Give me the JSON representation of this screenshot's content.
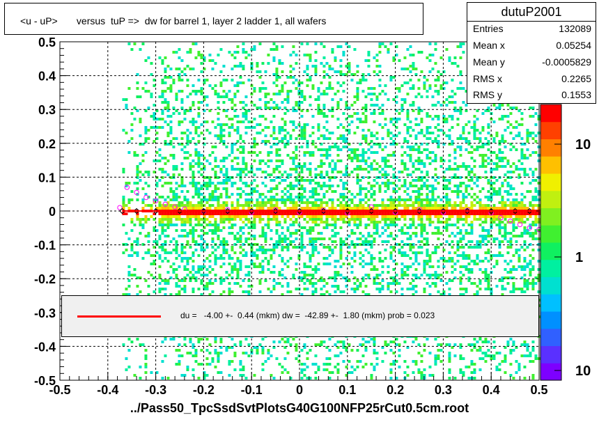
{
  "header": {
    "title": "<u - uP>       versus  tuP =>  dw for barrel 1, layer 2 ladder 1, all wafers"
  },
  "stats": {
    "name": "dutuP2001",
    "rows": [
      {
        "key": "Entries",
        "value": "132089"
      },
      {
        "key": "Mean x",
        "value": "0.05254"
      },
      {
        "key": "Mean y",
        "value": "-0.0005829"
      },
      {
        "key": "RMS x",
        "value": "0.2265"
      },
      {
        "key": "RMS y",
        "value": "0.1553"
      }
    ]
  },
  "legend": {
    "line_color": "#ff0000",
    "text": "du =   -4.00 +-  0.44 (mkm) dw =  -42.89 +-  1.80 (mkm) prob = 0.023"
  },
  "footer": {
    "filename": "../Pass50_TpcSsdSvtPlotsG40G100NFP25rCut0.5cm.root"
  },
  "chart_data": {
    "type": "heatmap",
    "title": "<u - uP>       versus  tuP =>  dw for barrel 1, layer 2 ladder 1, all wafers",
    "xlabel": "",
    "ylabel": "",
    "xlim": [
      -0.5,
      0.5
    ],
    "ylim": [
      -0.5,
      0.5
    ],
    "x_ticks": [
      "-0.5",
      "-0.4",
      "-0.3",
      "-0.2",
      "-0.1",
      "0",
      "0.1",
      "0.2",
      "0.3",
      "0.4",
      "0.5"
    ],
    "y_ticks": [
      "0.5",
      "0.4",
      "0.3",
      "0.2",
      "0.1",
      "0",
      "-0.1",
      "-0.2",
      "-0.3",
      "-0.4",
      "-0.5"
    ],
    "grid": true,
    "colorbar": {
      "scale": "log",
      "tick_labels": [
        "10",
        "1",
        "10"
      ],
      "colors": [
        "#7d00ff",
        "#5a30ff",
        "#3060ff",
        "#0090ff",
        "#00c0ff",
        "#00e0d0",
        "#00f0a0",
        "#10f060",
        "#40f030",
        "#80f020",
        "#c0f010",
        "#f0f000",
        "#ffc000",
        "#ff8000",
        "#ff4000",
        "#ff0000"
      ]
    },
    "data_extent_x": [
      -0.37,
      0.5
    ],
    "core_band_y": [
      -0.012,
      0.012
    ],
    "fit": {
      "x": [
        -0.37,
        0.49
      ],
      "y": [
        0.0,
        0.0
      ],
      "color": "#ff0000"
    },
    "profile_black": {
      "x": [
        -0.37,
        -0.34,
        -0.3,
        -0.25,
        -0.2,
        -0.15,
        -0.1,
        -0.05,
        0.0,
        0.05,
        0.1,
        0.15,
        0.2,
        0.25,
        0.3,
        0.35,
        0.4,
        0.45,
        0.48
      ],
      "y": [
        0.0,
        0.0,
        0.0,
        0.0,
        0.0,
        0.0,
        0.0,
        0.0,
        0.0,
        0.0,
        0.0,
        0.0,
        0.0,
        0.0,
        0.0,
        0.0,
        0.0,
        0.0,
        0.0
      ]
    },
    "profile_magenta": {
      "x": [
        -0.375,
        -0.36,
        -0.34,
        -0.32,
        -0.3,
        -0.28,
        -0.26,
        -0.24,
        -0.2,
        -0.15,
        -0.1,
        -0.05,
        0.0,
        0.05,
        0.1,
        0.15,
        0.2,
        0.25,
        0.3,
        0.35,
        0.4,
        0.42,
        0.44,
        0.46,
        0.48,
        0.5
      ],
      "y": [
        0.01,
        0.07,
        0.055,
        0.04,
        0.03,
        0.02,
        0.012,
        0.006,
        0.0,
        0.004,
        -0.004,
        0.003,
        -0.004,
        0.002,
        -0.006,
        0.012,
        -0.004,
        0.004,
        -0.004,
        0.002,
        -0.006,
        -0.02,
        -0.03,
        -0.04,
        -0.05,
        -0.055
      ]
    }
  }
}
